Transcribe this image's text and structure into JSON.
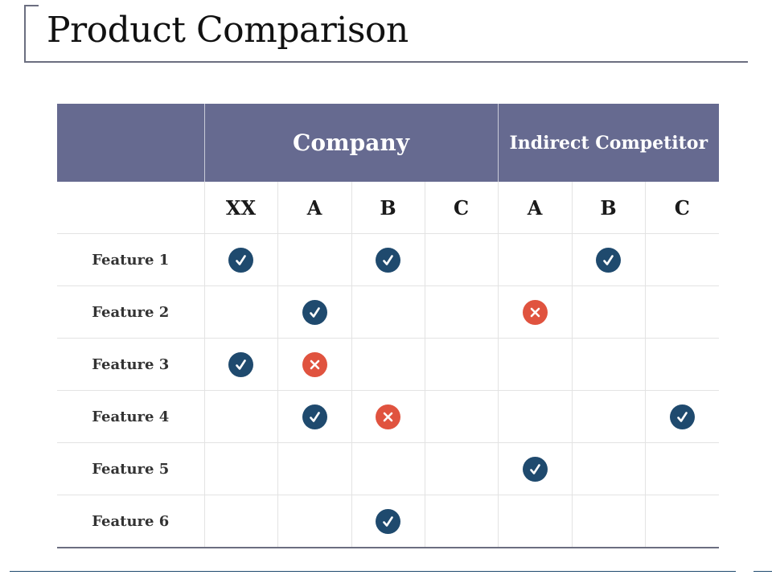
{
  "slide": {
    "title": "Product Comparison"
  },
  "table": {
    "group_headers": {
      "company": "Company",
      "indirect": "Indirect Competitor"
    },
    "columns": [
      "XX",
      "A",
      "B",
      "C",
      "A",
      "B",
      "C"
    ],
    "rows": [
      {
        "label": "Feature 1",
        "marks": [
          "check",
          "",
          "check",
          "",
          "",
          "check",
          ""
        ]
      },
      {
        "label": "Feature 2",
        "marks": [
          "",
          "check",
          "",
          "",
          "cross",
          "",
          ""
        ]
      },
      {
        "label": "Feature 3",
        "marks": [
          "check",
          "cross",
          "",
          "",
          "",
          "",
          ""
        ]
      },
      {
        "label": "Feature 4",
        "marks": [
          "",
          "check",
          "cross",
          "",
          "",
          "",
          "check"
        ]
      },
      {
        "label": "Feature 5",
        "marks": [
          "",
          "",
          "",
          "",
          "check",
          "",
          ""
        ]
      },
      {
        "label": "Feature 6",
        "marks": [
          "",
          "",
          "check",
          "",
          "",
          "",
          ""
        ]
      }
    ]
  },
  "colors": {
    "header_bg": "#666a90",
    "check": "#1f4a6e",
    "cross": "#e0533f"
  },
  "icons": {
    "check": "check-icon",
    "cross": "cross-icon"
  }
}
